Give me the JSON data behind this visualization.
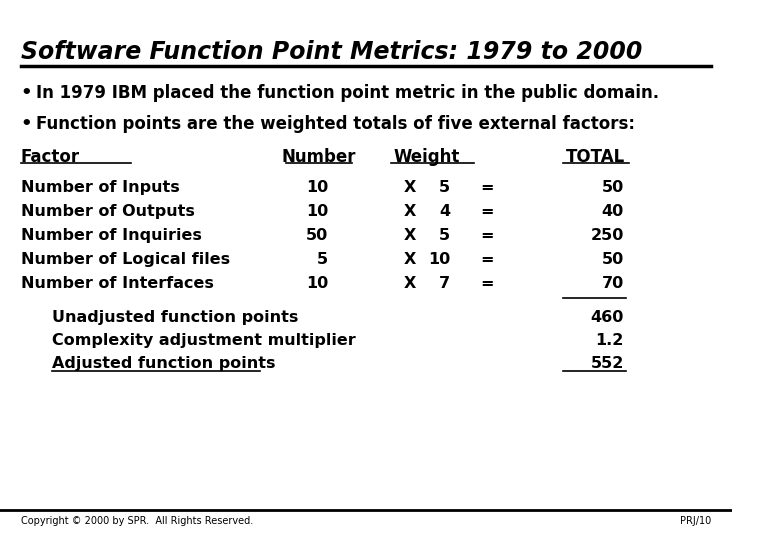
{
  "title": "Software Function Point Metrics: 1979 to 2000",
  "bullet1": "In 1979 IBM placed the function point metric in the public domain.",
  "bullet2": "Function points are the weighted totals of five external factors:",
  "col_headers": [
    "Factor",
    "Number",
    "Weight",
    "TOTAL"
  ],
  "factors": [
    "Number of Inputs",
    "Number of Outputs",
    "Number of Inquiries",
    "Number of Logical files",
    "Number of Interfaces"
  ],
  "numbers": [
    "10",
    "10",
    "50",
    "5",
    "10"
  ],
  "weights": [
    "5",
    "4",
    "5",
    "10",
    "7"
  ],
  "totals": [
    "50",
    "40",
    "250",
    "50",
    "70"
  ],
  "summary_labels": [
    "Unadjusted function points",
    "Complexity adjustment multiplier",
    "Adjusted function points"
  ],
  "summary_values": [
    "460",
    "1.2",
    "552"
  ],
  "copyright": "Copyright © 2000 by SPR.  All Rights Reserved.",
  "page_ref": "PRJ/10",
  "bg_color": "#ffffff",
  "text_color": "#000000",
  "title_color": "#000000"
}
